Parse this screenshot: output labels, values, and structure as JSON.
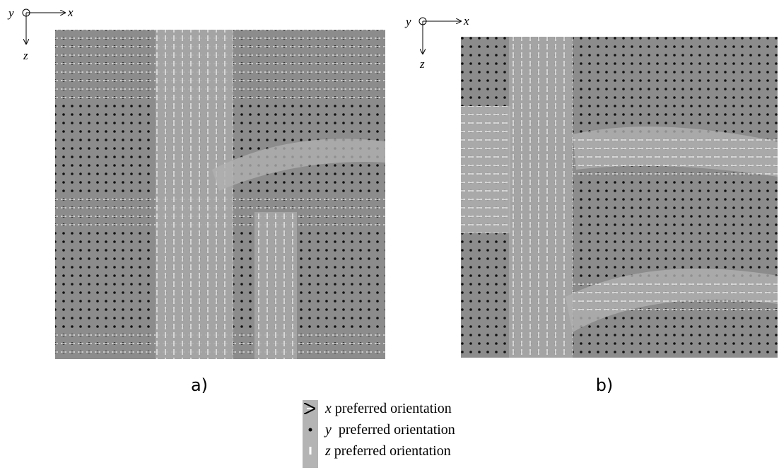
{
  "panels": [
    {
      "label": "a)",
      "axes": {
        "y": "y",
        "x": "x",
        "z": "z"
      }
    },
    {
      "label": "b)",
      "axes": {
        "y": "y",
        "x": "x",
        "z": "z"
      }
    }
  ],
  "legend": [
    {
      "symbol": "x",
      "text": "preferred orientation"
    },
    {
      "symbol": "y",
      "text": " preferred orientation"
    },
    {
      "symbol": "z",
      "text": "preferred orientation"
    }
  ]
}
